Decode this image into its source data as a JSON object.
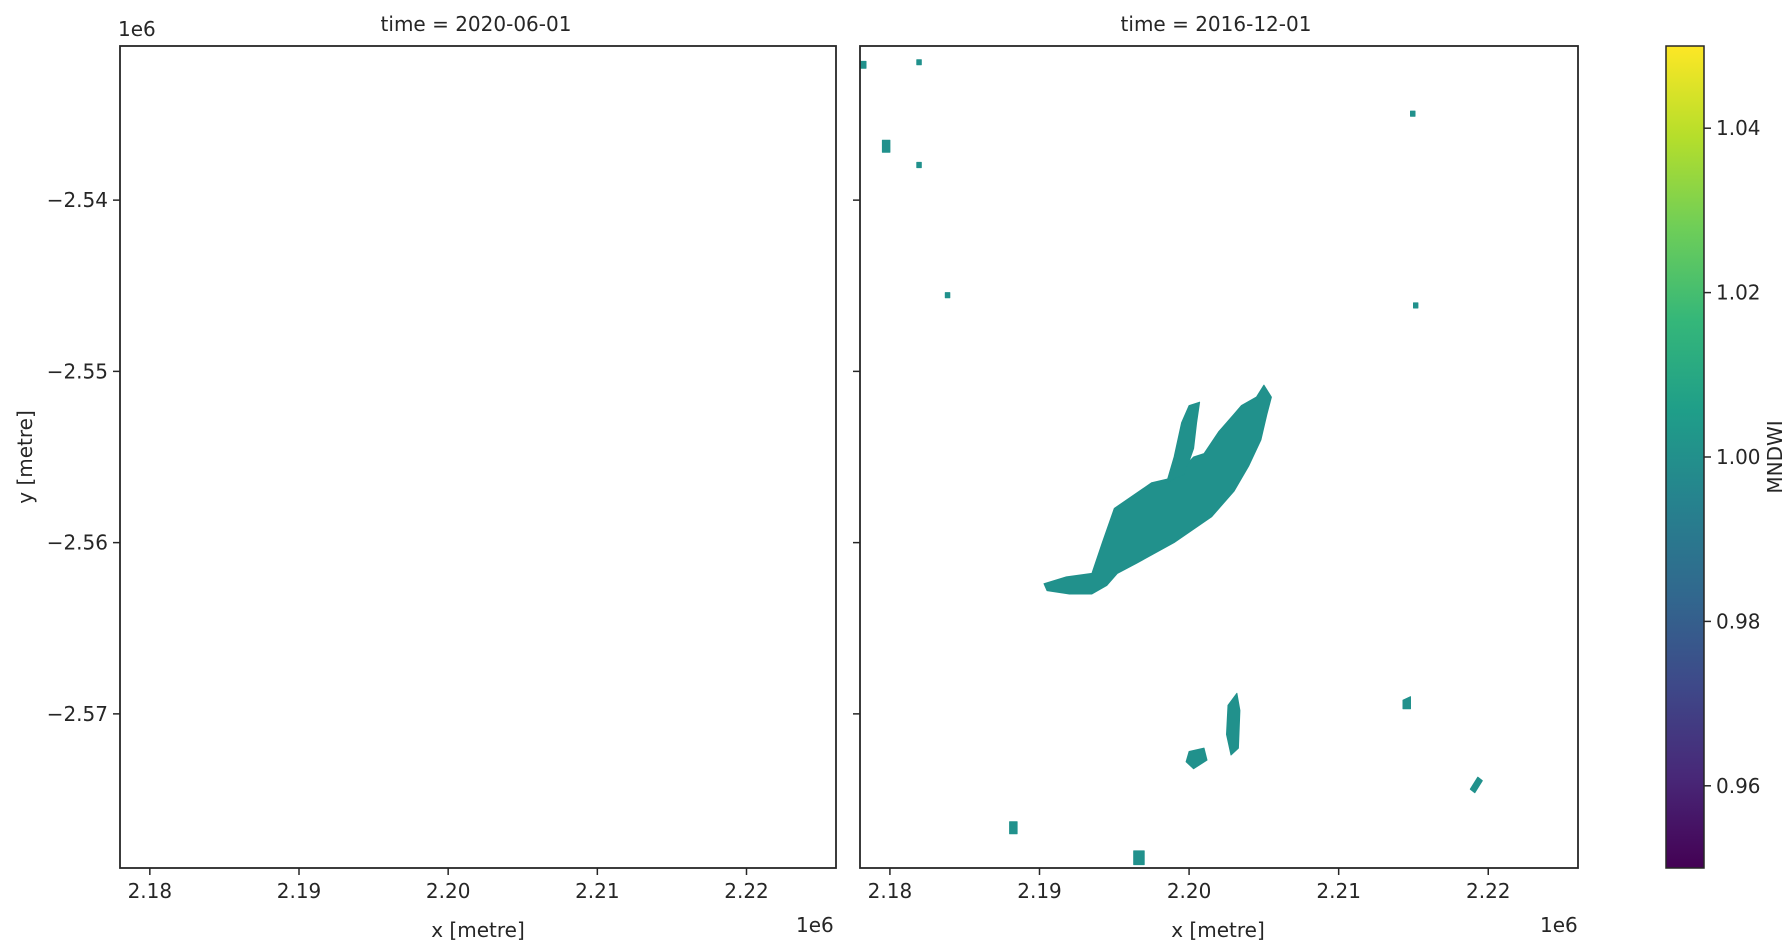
{
  "chart_data": [
    {
      "type": "heatmap",
      "title": "time = 2020-06-01",
      "xlabel": "x [metre]",
      "ylabel": "y [metre]",
      "x_offset_label": "1e6",
      "y_offset_label": "1e6",
      "xlim": [
        2.178,
        2.226
      ],
      "ylim": [
        -2.579,
        -2.531
      ],
      "x_ticks": [
        2.18,
        2.19,
        2.2,
        2.21,
        2.22
      ],
      "x_tick_labels": [
        "2.18",
        "2.19",
        "2.20",
        "2.21",
        "2.22"
      ],
      "y_ticks": [
        -2.54,
        -2.55,
        -2.56,
        -2.57
      ],
      "y_tick_labels": [
        "−2.54",
        "−2.55",
        "−2.56",
        "−2.57"
      ],
      "water_regions": []
    },
    {
      "type": "heatmap",
      "title": "time = 2016-12-01",
      "xlabel": "x [metre]",
      "x_offset_label": "1e6",
      "xlim": [
        2.178,
        2.226
      ],
      "ylim": [
        -2.579,
        -2.531
      ],
      "x_ticks": [
        2.18,
        2.19,
        2.2,
        2.21,
        2.22
      ],
      "x_tick_labels": [
        "2.18",
        "2.19",
        "2.20",
        "2.21",
        "2.22"
      ],
      "y_ticks": [
        -2.54,
        -2.55,
        -2.56,
        -2.57
      ],
      "mndwi_value": 1.0,
      "water_regions": [
        {
          "name": "main-lake",
          "points": [
            [
              2.1903,
              -2.5624
            ],
            [
              2.1918,
              -2.562
            ],
            [
              2.1935,
              -2.5618
            ],
            [
              2.1942,
              -2.56
            ],
            [
              2.195,
              -2.558
            ],
            [
              2.1975,
              -2.5565
            ],
            [
              2.199,
              -2.5562
            ],
            [
              2.2003,
              -2.555
            ],
            [
              2.201,
              -2.5548
            ],
            [
              2.202,
              -2.5535
            ],
            [
              2.2022,
              -2.5533
            ],
            [
              2.203,
              -2.5525
            ],
            [
              2.2035,
              -2.552
            ],
            [
              2.2045,
              -2.5515
            ],
            [
              2.205,
              -2.5508
            ],
            [
              2.2055,
              -2.5515
            ],
            [
              2.2052,
              -2.5525
            ],
            [
              2.2048,
              -2.554
            ],
            [
              2.204,
              -2.5555
            ],
            [
              2.203,
              -2.557
            ],
            [
              2.2015,
              -2.5585
            ],
            [
              2.199,
              -2.56
            ],
            [
              2.1965,
              -2.5612
            ],
            [
              2.1952,
              -2.5618
            ],
            [
              2.1945,
              -2.5625
            ],
            [
              2.1935,
              -2.563
            ],
            [
              2.192,
              -2.563
            ],
            [
              2.1905,
              -2.5628
            ]
          ]
        },
        {
          "name": "lake-spur",
          "points": [
            [
              2.1985,
              -2.5565
            ],
            [
              2.199,
              -2.555
            ],
            [
              2.1995,
              -2.553
            ],
            [
              2.2,
              -2.552
            ],
            [
              2.2007,
              -2.5518
            ],
            [
              2.2005,
              -2.553
            ],
            [
              2.2003,
              -2.5545
            ],
            [
              2.1997,
              -2.556
            ]
          ]
        },
        {
          "name": "small-pond-1",
          "points": [
            [
              2.2,
              -2.5722
            ],
            [
              2.201,
              -2.572
            ],
            [
              2.2012,
              -2.5727
            ],
            [
              2.2003,
              -2.5732
            ],
            [
              2.1998,
              -2.5728
            ]
          ]
        },
        {
          "name": "small-pond-2",
          "points": [
            [
              2.2026,
              -2.5695
            ],
            [
              2.2032,
              -2.5688
            ],
            [
              2.2034,
              -2.5698
            ],
            [
              2.2033,
              -2.572
            ],
            [
              2.2028,
              -2.5724
            ],
            [
              2.2025,
              -2.5712
            ]
          ]
        },
        {
          "name": "small-pond-3",
          "points": [
            [
              2.2143,
              -2.5692
            ],
            [
              2.2148,
              -2.569
            ],
            [
              2.2148,
              -2.5697
            ],
            [
              2.2143,
              -2.5697
            ]
          ]
        },
        {
          "name": "speck-1",
          "points": [
            [
              2.1795,
              -2.5365
            ],
            [
              2.18,
              -2.5365
            ],
            [
              2.18,
              -2.5372
            ],
            [
              2.1795,
              -2.5372
            ]
          ]
        },
        {
          "name": "speck-2",
          "points": [
            [
              2.188,
              -2.5763
            ],
            [
              2.1885,
              -2.5763
            ],
            [
              2.1885,
              -2.577
            ],
            [
              2.188,
              -2.577
            ]
          ]
        },
        {
          "name": "speck-3",
          "points": [
            [
              2.1963,
              -2.578
            ],
            [
              2.197,
              -2.578
            ],
            [
              2.197,
              -2.5788
            ],
            [
              2.1963,
              -2.5788
            ]
          ]
        },
        {
          "name": "speck-4",
          "points": [
            [
              2.2188,
              -2.5744
            ],
            [
              2.2193,
              -2.5737
            ],
            [
              2.2196,
              -2.5739
            ],
            [
              2.2191,
              -2.5746
            ]
          ]
        },
        {
          "name": "speck-5",
          "points": [
            [
              2.178,
              -2.5319
            ],
            [
              2.1784,
              -2.5319
            ],
            [
              2.1784,
              -2.5323
            ],
            [
              2.178,
              -2.5323
            ]
          ]
        },
        {
          "name": "speck-6",
          "points": [
            [
              2.1818,
              -2.5318
            ],
            [
              2.1821,
              -2.5318
            ],
            [
              2.1821,
              -2.5321
            ],
            [
              2.1818,
              -2.5321
            ]
          ]
        },
        {
          "name": "speck-7",
          "points": [
            [
              2.1818,
              -2.5378
            ],
            [
              2.1821,
              -2.5378
            ],
            [
              2.1821,
              -2.5381
            ],
            [
              2.1818,
              -2.5381
            ]
          ]
        },
        {
          "name": "speck-8",
          "points": [
            [
              2.2148,
              -2.5348
            ],
            [
              2.2151,
              -2.5348
            ],
            [
              2.2151,
              -2.5351
            ],
            [
              2.2148,
              -2.5351
            ]
          ]
        },
        {
          "name": "speck-9",
          "points": [
            [
              2.1837,
              -2.5454
            ],
            [
              2.184,
              -2.5454
            ],
            [
              2.184,
              -2.5457
            ],
            [
              2.1837,
              -2.5457
            ]
          ]
        },
        {
          "name": "speck-10",
          "points": [
            [
              2.215,
              -2.546
            ],
            [
              2.2153,
              -2.546
            ],
            [
              2.2153,
              -2.5463
            ],
            [
              2.215,
              -2.5463
            ]
          ]
        }
      ]
    }
  ],
  "colorbar": {
    "label": "MNDWI",
    "colormap": "viridis",
    "range": [
      0.95,
      1.05
    ],
    "ticks": [
      0.96,
      0.98,
      1.0,
      1.02,
      1.04
    ],
    "tick_labels": [
      "0.96",
      "0.98",
      "1.00",
      "1.02",
      "1.04"
    ],
    "stops": [
      "#440154",
      "#482878",
      "#3e4989",
      "#31688e",
      "#26828e",
      "#1f9e89",
      "#35b779",
      "#6ece58",
      "#b5de2b",
      "#fde725"
    ]
  },
  "colors": {
    "water": "#21918c",
    "axes": "#262626"
  }
}
